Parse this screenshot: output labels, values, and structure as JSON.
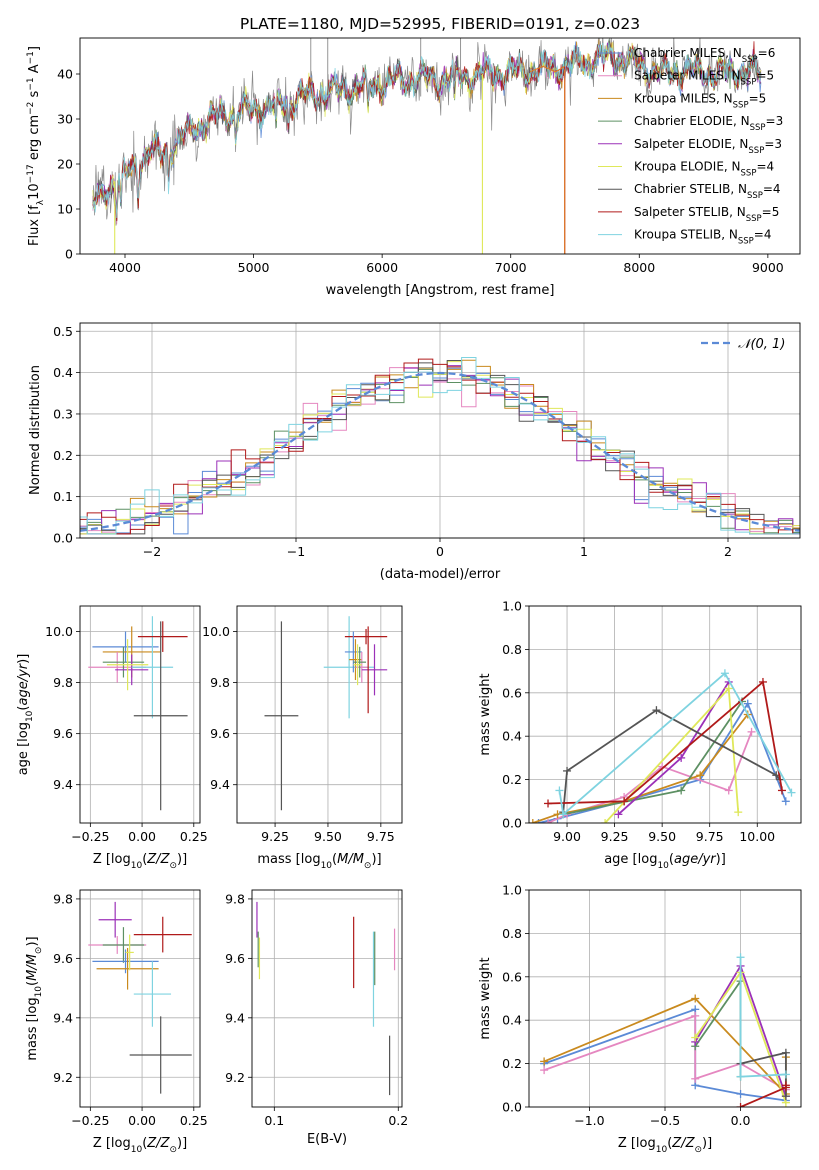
{
  "figure": {
    "title": "PLATE=1180, MJD=52995, FIBERID=0191, z=0.023"
  },
  "colors": {
    "Chabrier MILES": "#5b8ad6",
    "Salpeter MILES": "#e587c0",
    "Kroupa MILES": "#c98a1e",
    "Chabrier ELODIE": "#5d9063",
    "Salpeter ELODIE": "#9b30b8",
    "Kroupa ELODIE": "#dfe85a",
    "Chabrier STELIB": "#555555",
    "Salpeter STELIB": "#b01a1a",
    "Kroupa STELIB": "#7fd3e0",
    "orange": "#e07b24",
    "data": "#8a8a8a"
  },
  "chart_data": [
    {
      "id": "spectrum",
      "type": "line",
      "title": "PLATE=1180, MJD=52995, FIBERID=0191, z=0.023",
      "xlabel": "wavelength [Angstrom, rest frame]",
      "ylabel": "Flux [f_λ10^−17 erg cm^−2 s^−1 A^−1]",
      "xlim": [
        3650,
        9250
      ],
      "ylim": [
        0,
        48
      ],
      "xticks": [
        "4000",
        "5000",
        "6000",
        "7000",
        "8000",
        "9000"
      ],
      "yticks": [
        "0",
        "10",
        "20",
        "30",
        "40"
      ],
      "grid": false,
      "legend_position": "top-right",
      "legend": [
        "Chabrier MILES, N_SSP=6",
        "Salpeter MILES, N_SSP=5",
        "Kroupa MILES, N_SSP=5",
        "Chabrier ELODIE, N_SSP=3",
        "Salpeter ELODIE, N_SSP=3",
        "Kroupa ELODIE, N_SSP=4",
        "Chabrier STELIB, N_SSP=4",
        "Salpeter STELIB, N_SSP=5",
        "Kroupa STELIB, N_SSP=4"
      ],
      "continuum": {
        "x": [
          3750,
          3800,
          3900,
          4000,
          4100,
          4200,
          4300,
          4400,
          4500,
          4600,
          4800,
          5000,
          5200,
          5400,
          5600,
          5800,
          6000,
          6200,
          6400,
          6600,
          6800,
          7000,
          7200,
          7400,
          7600,
          7800,
          8000,
          8200,
          8400,
          8600,
          8800,
          8950
        ],
        "y": [
          11,
          12,
          16,
          17,
          20,
          23,
          22,
          25,
          27,
          29,
          31,
          32,
          33,
          35,
          36,
          37,
          38,
          39,
          39,
          39.5,
          40,
          40.5,
          41,
          41.5,
          43,
          44,
          42,
          40,
          41,
          40,
          41,
          40
        ]
      },
      "drops": [
        {
          "series": "Kroupa ELODIE",
          "x_start": 6780,
          "y": 0
        },
        {
          "series": "Salpeter STELIB",
          "x_start": 7420,
          "y": 0
        },
        {
          "series": "Kroupa ELODIE",
          "x_start": 3920,
          "y": 0
        }
      ]
    },
    {
      "id": "residuals",
      "type": "histogram",
      "xlabel": "(data-model)/error",
      "ylabel": "Normed distribution",
      "xlim": [
        -2.5,
        2.5
      ],
      "ylim": [
        0,
        0.52
      ],
      "xticks": [
        "−2",
        "−1",
        "0",
        "1",
        "2"
      ],
      "yticks": [
        "0.0",
        "0.1",
        "0.2",
        "0.3",
        "0.4",
        "0.5"
      ],
      "grid": true,
      "legend_position": "top-right",
      "legend": [
        "𝒩(0, 1)"
      ],
      "bin_width": 0.1,
      "normal": {
        "mu": 0,
        "sigma": 1
      }
    },
    {
      "id": "age-vs-Z",
      "type": "errorbar",
      "xlabel": "Z [log10(Z/Z⊙)]",
      "ylabel": "age  [log10(age/yr)]",
      "xlim": [
        -0.3,
        0.28
      ],
      "ylim": [
        9.25,
        10.1
      ],
      "xticks": [
        "−0.25",
        "0.00",
        "0.25"
      ],
      "yticks": [
        "9.4",
        "9.6",
        "9.8",
        "10.0"
      ],
      "grid": true,
      "points": [
        {
          "series": "Chabrier MILES",
          "x": -0.08,
          "xerr": 0.16,
          "y": 9.94,
          "yerr": 0.06
        },
        {
          "series": "Kroupa MILES",
          "x": -0.05,
          "xerr": 0.14,
          "y": 9.92,
          "yerr": 0.1
        },
        {
          "series": "Salpeter MILES",
          "x": -0.12,
          "xerr": 0.14,
          "y": 9.86,
          "yerr": 0.06
        },
        {
          "series": "Chabrier ELODIE",
          "x": -0.09,
          "xerr": 0.1,
          "y": 9.88,
          "yerr": 0.06
        },
        {
          "series": "Salpeter ELODIE",
          "x": -0.05,
          "xerr": 0.08,
          "y": 9.85,
          "yerr": 0.06
        },
        {
          "series": "Kroupa ELODIE",
          "x": -0.07,
          "xerr": 0.1,
          "y": 9.87,
          "yerr": 0.1
        },
        {
          "series": "Kroupa STELIB",
          "x": 0.05,
          "xerr": 0.1,
          "y": 9.86,
          "yerr": 0.2
        },
        {
          "series": "Salpeter STELIB",
          "x": 0.1,
          "xerr": 0.12,
          "y": 9.98,
          "yerr": 0.06
        },
        {
          "series": "Chabrier STELIB",
          "x": 0.09,
          "xerr": 0.13,
          "y": 9.67,
          "yerr": 0.37
        }
      ]
    },
    {
      "id": "age-vs-mass",
      "type": "errorbar",
      "xlabel": "mass [log10(M/M⊙)]",
      "ylim": [
        9.25,
        10.1
      ],
      "xlim": [
        9.07,
        9.85
      ],
      "xticks": [
        "9.25",
        "9.50",
        "9.75"
      ],
      "yticks": [
        "9.4",
        "9.6",
        "9.8",
        "10.0"
      ],
      "grid": true,
      "points": [
        {
          "series": "Chabrier STELIB",
          "x": 9.28,
          "xerr": 0.08,
          "y": 9.67,
          "yerr": 0.37
        },
        {
          "series": "Kroupa STELIB",
          "x": 9.6,
          "xerr": 0.12,
          "y": 9.86,
          "yerr": 0.2
        },
        {
          "series": "Salpeter STELIB",
          "x": 9.68,
          "xerr": 0.1,
          "y": 9.98,
          "yerr": 0.03
        },
        {
          "series": "Chabrier MILES",
          "x": 9.62,
          "xerr": 0.04,
          "y": 9.92,
          "yerr": 0.08
        },
        {
          "series": "Kroupa MILES",
          "x": 9.63,
          "xerr": 0.03,
          "y": 9.89,
          "yerr": 0.08
        },
        {
          "series": "Salpeter MILES",
          "x": 9.66,
          "xerr": 0.03,
          "y": 9.86,
          "yerr": 0.06
        },
        {
          "series": "Chabrier ELODIE",
          "x": 9.65,
          "xerr": 0.03,
          "y": 9.88,
          "yerr": 0.06
        },
        {
          "series": "Kroupa ELODIE",
          "x": 9.64,
          "xerr": 0.02,
          "y": 9.87,
          "yerr": 0.08
        },
        {
          "series": "Salpeter ELODIE",
          "x": 9.72,
          "xerr": 0.06,
          "y": 9.85,
          "yerr": 0.1
        },
        {
          "series": "Salpeter STELIB",
          "x": 9.69,
          "xerr": 0.0,
          "y": 9.85,
          "yerr": 0.17
        }
      ]
    },
    {
      "id": "weight-vs-age",
      "type": "line",
      "xlabel": "age  [log10(age/yr)]",
      "ylabel": "mass weight",
      "xlim": [
        8.8,
        10.23
      ],
      "ylim": [
        0,
        1
      ],
      "xticks": [
        "9.00",
        "9.25",
        "9.50",
        "9.75",
        "10.00"
      ],
      "yticks": [
        "0.0",
        "0.2",
        "0.4",
        "0.6",
        "0.8",
        "1.0"
      ],
      "grid": true,
      "series": [
        {
          "name": "Chabrier MILES",
          "x": [
            8.85,
            8.95,
            9.3,
            9.7,
            9.95,
            10.15
          ],
          "y": [
            0.0,
            0.02,
            0.1,
            0.2,
            0.55,
            0.1
          ]
        },
        {
          "name": "Salpeter MILES",
          "x": [
            8.9,
            9.0,
            9.3,
            9.5,
            9.85,
            9.97
          ],
          "y": [
            0.0,
            0.04,
            0.12,
            0.26,
            0.15,
            0.42
          ]
        },
        {
          "name": "Kroupa MILES",
          "x": [
            8.82,
            8.95,
            9.3,
            9.7,
            9.95
          ],
          "y": [
            0.0,
            0.04,
            0.1,
            0.22,
            0.5
          ]
        },
        {
          "name": "Chabrier ELODIE",
          "x": [
            8.98,
            9.6,
            9.92
          ],
          "y": [
            0.04,
            0.15,
            0.56
          ]
        },
        {
          "name": "Salpeter ELODIE",
          "x": [
            9.27,
            9.6,
            9.85
          ],
          "y": [
            0.04,
            0.3,
            0.65
          ]
        },
        {
          "name": "Kroupa ELODIE",
          "x": [
            9.2,
            9.85,
            9.9
          ],
          "y": [
            0.0,
            0.62,
            0.05
          ]
        },
        {
          "name": "Chabrier STELIB",
          "x": [
            8.98,
            9.0,
            9.47,
            10.1,
            10.12
          ],
          "y": [
            0.05,
            0.24,
            0.52,
            0.22,
            0.2
          ]
        },
        {
          "name": "Salpeter STELIB",
          "x": [
            8.9,
            9.3,
            10.03,
            10.13
          ],
          "y": [
            0.09,
            0.1,
            0.65,
            0.15
          ]
        },
        {
          "name": "Kroupa STELIB",
          "x": [
            8.96,
            8.98,
            9.83,
            10.18
          ],
          "y": [
            0.15,
            0.04,
            0.69,
            0.14
          ]
        }
      ]
    },
    {
      "id": "mass-vs-Z",
      "type": "errorbar",
      "xlabel": "Z [log10(Z/Z⊙)]",
      "ylabel": "mass [log10(M/M⊙)]",
      "xlim": [
        -0.3,
        0.28
      ],
      "ylim": [
        9.1,
        9.83
      ],
      "xticks": [
        "−0.25",
        "0.00",
        "0.25"
      ],
      "yticks": [
        "9.2",
        "9.4",
        "9.6",
        "9.8"
      ],
      "grid": true,
      "points": [
        {
          "series": "Salpeter ELODIE",
          "x": -0.13,
          "xerr": 0.08,
          "y": 9.73,
          "yerr": 0.06
        },
        {
          "series": "Salpeter STELIB",
          "x": 0.1,
          "xerr": 0.14,
          "y": 9.68,
          "yerr": 0.06
        },
        {
          "series": "Salpeter MILES",
          "x": -0.12,
          "xerr": 0.14,
          "y": 9.645,
          "yerr": 0.03
        },
        {
          "series": "Chabrier ELODIE",
          "x": -0.09,
          "xerr": 0.1,
          "y": 9.645,
          "yerr": 0.06
        },
        {
          "series": "Chabrier MILES",
          "x": -0.08,
          "xerr": 0.16,
          "y": 9.59,
          "yerr": 0.04
        },
        {
          "series": "Kroupa MILES",
          "x": -0.07,
          "xerr": 0.15,
          "y": 9.565,
          "yerr": 0.07
        },
        {
          "series": "Kroupa ELODIE",
          "x": -0.06,
          "xerr": 0.02,
          "y": 9.62,
          "yerr": 0.06
        },
        {
          "series": "Kroupa STELIB",
          "x": 0.05,
          "xerr": 0.09,
          "y": 9.48,
          "yerr": 0.11
        },
        {
          "series": "Chabrier STELIB",
          "x": 0.09,
          "xerr": 0.15,
          "y": 9.275,
          "yerr": 0.13
        }
      ]
    },
    {
      "id": "mass-vs-ebv",
      "type": "errorbar",
      "xlabel": "E(B-V)",
      "xlim": [
        0.082,
        0.203
      ],
      "ylim": [
        9.1,
        9.83
      ],
      "xticks": [
        "0.1",
        "0.2"
      ],
      "yticks": [
        "9.2",
        "9.4",
        "9.6",
        "9.8"
      ],
      "grid": true,
      "points": [
        {
          "series": "Salpeter ELODIE",
          "x": 0.086,
          "y": 9.73,
          "yerr": 0.06
        },
        {
          "series": "Chabrier ELODIE",
          "x": 0.087,
          "y": 9.63,
          "yerr": 0.06
        },
        {
          "series": "Kroupa ELODIE",
          "x": 0.088,
          "y": 9.6,
          "yerr": 0.07
        },
        {
          "series": "Salpeter STELIB",
          "x": 0.164,
          "y": 9.62,
          "yerr": 0.12
        },
        {
          "series": "Kroupa STELIB",
          "x": 0.18,
          "y": 9.53,
          "yerr": 0.16
        },
        {
          "series": "Chabrier ELODIE",
          "x": 0.181,
          "y": 9.6,
          "yerr": 0.09
        },
        {
          "series": "Chabrier STELIB",
          "x": 0.193,
          "y": 9.24,
          "yerr": 0.1
        },
        {
          "series": "Salpeter MILES",
          "x": 0.197,
          "y": 9.63,
          "yerr": 0.07
        }
      ]
    },
    {
      "id": "weight-vs-Z",
      "type": "line",
      "xlabel": "Z [log10(Z/Z⊙)]",
      "ylabel": "mass weight",
      "xlim": [
        -1.4,
        0.4
      ],
      "ylim": [
        0,
        1
      ],
      "xticks": [
        "−1.0",
        "−0.5",
        "0.0"
      ],
      "yticks": [
        "0.0",
        "0.2",
        "0.4",
        "0.6",
        "0.8",
        "1.0"
      ],
      "grid": true,
      "series": [
        {
          "name": "Chabrier MILES",
          "x": [
            -1.3,
            -0.3,
            -0.3,
            0.0,
            0.3
          ],
          "y": [
            0.2,
            0.45,
            0.1,
            0.06,
            0.03
          ]
        },
        {
          "name": "Salpeter MILES",
          "x": [
            -1.3,
            -0.3,
            -0.3,
            0.0,
            0.3
          ],
          "y": [
            0.17,
            0.42,
            0.13,
            0.2,
            0.08
          ]
        },
        {
          "name": "Kroupa MILES",
          "x": [
            -1.3,
            -0.3,
            0.3,
            0.3
          ],
          "y": [
            0.21,
            0.5,
            0.06,
            0.23
          ]
        },
        {
          "name": "Chabrier ELODIE",
          "x": [
            -0.3,
            0.0,
            0.0
          ],
          "y": [
            0.28,
            0.58,
            0.14
          ]
        },
        {
          "name": "Salpeter ELODIE",
          "x": [
            -0.3,
            0.0,
            0.3
          ],
          "y": [
            0.3,
            0.65,
            0.05
          ]
        },
        {
          "name": "Kroupa ELODIE",
          "x": [
            -0.3,
            0.0,
            0.3
          ],
          "y": [
            0.32,
            0.62,
            0.02
          ]
        },
        {
          "name": "Chabrier STELIB",
          "x": [
            0.0,
            0.3,
            0.3
          ],
          "y": [
            0.2,
            0.25,
            0.05
          ]
        },
        {
          "name": "Salpeter STELIB",
          "x": [
            0.0,
            0.3,
            0.3
          ],
          "y": [
            0.0,
            0.09,
            0.1
          ]
        },
        {
          "name": "Kroupa STELIB",
          "x": [
            0.0,
            0.0,
            0.3
          ],
          "y": [
            0.69,
            0.14,
            0.15
          ]
        }
      ]
    }
  ]
}
